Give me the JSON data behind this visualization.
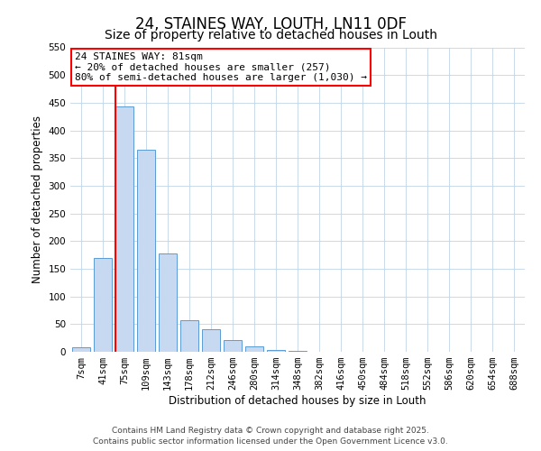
{
  "title": "24, STAINES WAY, LOUTH, LN11 0DF",
  "subtitle": "Size of property relative to detached houses in Louth",
  "xlabel": "Distribution of detached houses by size in Louth",
  "ylabel": "Number of detached properties",
  "bar_labels": [
    "7sqm",
    "41sqm",
    "75sqm",
    "109sqm",
    "143sqm",
    "178sqm",
    "212sqm",
    "246sqm",
    "280sqm",
    "314sqm",
    "348sqm",
    "382sqm",
    "416sqm",
    "450sqm",
    "484sqm",
    "518sqm",
    "552sqm",
    "586sqm",
    "620sqm",
    "654sqm",
    "688sqm"
  ],
  "bar_values": [
    8,
    170,
    443,
    365,
    177,
    57,
    40,
    22,
    10,
    4,
    1,
    0,
    0,
    0,
    0,
    0,
    0,
    0,
    0,
    0,
    0
  ],
  "bar_color": "#c6d9f0",
  "bar_edge_color": "#5b9bd5",
  "ylim": [
    0,
    550
  ],
  "yticks": [
    0,
    50,
    100,
    150,
    200,
    250,
    300,
    350,
    400,
    450,
    500,
    550
  ],
  "red_line_index": 2,
  "annotation_line1": "24 STAINES WAY: 81sqm",
  "annotation_line2": "← 20% of detached houses are smaller (257)",
  "annotation_line3": "80% of semi-detached houses are larger (1,030) →",
  "footer_line1": "Contains HM Land Registry data © Crown copyright and database right 2025.",
  "footer_line2": "Contains public sector information licensed under the Open Government Licence v3.0.",
  "bg_color": "#ffffff",
  "grid_color": "#c0d4e8",
  "title_fontsize": 12,
  "subtitle_fontsize": 10,
  "axis_label_fontsize": 8.5,
  "tick_fontsize": 7.5,
  "annotation_fontsize": 8,
  "footer_fontsize": 6.5
}
